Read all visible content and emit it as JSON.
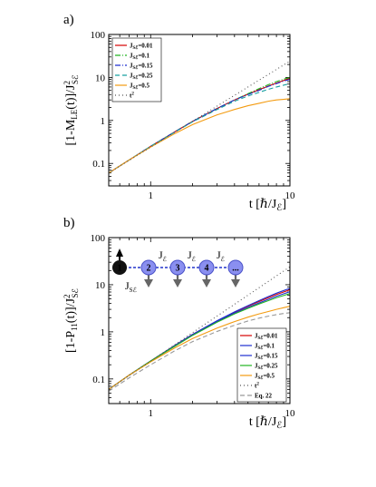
{
  "chart_data": [
    {
      "type": "line",
      "panel_label": "a)",
      "xlabel": "t [ℏ/J",
      "xlabel_sub": "ℰ",
      "xlabel_end": "]",
      "ylabel": "[1-M",
      "ylabel_sub": "LE",
      "ylabel_mid": "(t)]/J",
      "ylabel_sup": "2",
      "ylabel_sub2": "Sℰ",
      "xscale": "log",
      "yscale": "log",
      "xlim": [
        0.5,
        10
      ],
      "ylim": [
        0.03,
        100
      ],
      "xticks": [
        "1",
        "10"
      ],
      "yticks": [
        "0.1",
        "1",
        "10",
        "100"
      ],
      "legend_position": "top-left",
      "series": [
        {
          "name": "J",
          "sub": "Sℰ",
          "suffix": "=0.01",
          "color": "#d40000",
          "dash": "",
          "x": [
            0.5,
            0.7,
            1,
            1.5,
            2,
            3,
            4,
            5,
            6,
            7,
            8,
            9,
            10
          ],
          "y": [
            0.06,
            0.12,
            0.25,
            0.55,
            0.95,
            1.9,
            3.0,
            4.1,
            5.2,
            6.3,
            7.4,
            8.5,
            9.6
          ]
        },
        {
          "name": "J",
          "sub": "Sℰ",
          "suffix": "=0.1",
          "color": "#22b522",
          "dash": "6,2,1,2",
          "x": [
            0.5,
            0.7,
            1,
            1.5,
            2,
            3,
            4,
            5,
            6,
            7,
            8,
            9,
            10
          ],
          "y": [
            0.06,
            0.12,
            0.25,
            0.55,
            0.95,
            1.9,
            3.0,
            4.2,
            5.5,
            6.8,
            8.0,
            9.1,
            10.0
          ]
        },
        {
          "name": "J",
          "sub": "Sℰ",
          "suffix": "=0.15",
          "color": "#1f2fd0",
          "dash": "6,2,1,2",
          "x": [
            0.5,
            0.7,
            1,
            1.5,
            2,
            3,
            4,
            5,
            6,
            7,
            8,
            9,
            10
          ],
          "y": [
            0.06,
            0.12,
            0.25,
            0.55,
            0.95,
            1.9,
            3.0,
            4.0,
            5.0,
            6.2,
            7.2,
            8.2,
            9.0
          ]
        },
        {
          "name": "J",
          "sub": "Sℰ",
          "suffix": "=0.25",
          "color": "#18a0a0",
          "dash": "5,3",
          "x": [
            0.5,
            0.7,
            1,
            1.5,
            2,
            3,
            4,
            5,
            6,
            7,
            8,
            9,
            10
          ],
          "y": [
            0.06,
            0.12,
            0.25,
            0.54,
            0.93,
            1.8,
            2.8,
            3.7,
            4.5,
            5.3,
            6.0,
            6.6,
            7.2
          ]
        },
        {
          "name": "J",
          "sub": "Sℰ",
          "suffix": "=0.5",
          "color": "#f39b10",
          "dash": "",
          "x": [
            0.5,
            0.7,
            1,
            1.5,
            2,
            3,
            4,
            5,
            6,
            7,
            8,
            9,
            10
          ],
          "y": [
            0.06,
            0.12,
            0.24,
            0.5,
            0.8,
            1.35,
            1.8,
            2.2,
            2.5,
            2.8,
            3.0,
            3.1,
            3.2
          ]
        },
        {
          "name": "t",
          "sub": "",
          "sup": "2",
          "suffix": "",
          "color": "#555555",
          "dash": "1,3",
          "x": [
            0.5,
            1,
            2,
            4,
            10
          ],
          "y": [
            0.06,
            0.24,
            0.96,
            3.84,
            24
          ]
        }
      ]
    },
    {
      "type": "line",
      "panel_label": "b)",
      "xlabel": "t [ℏ/J",
      "xlabel_sub": "ℰ",
      "xlabel_end": "]",
      "ylabel": "[1-P",
      "ylabel_sub": "11",
      "ylabel_mid": "(t)]/J",
      "ylabel_sup": "2",
      "ylabel_sub2": "Sℰ",
      "xscale": "log",
      "yscale": "log",
      "xlim": [
        0.5,
        10
      ],
      "ylim": [
        0.03,
        100
      ],
      "xticks": [
        "1",
        "10"
      ],
      "yticks": [
        "0.1",
        "1",
        "10",
        "100"
      ],
      "legend_position": "bottom-right",
      "inset": {
        "spins": [
          "1",
          "2",
          "3",
          "4",
          "..."
        ],
        "coupling_S": "J",
        "coupling_S_sub": "Sℰ",
        "coupling_E": "J",
        "coupling_E_sub": "ℰ"
      },
      "series": [
        {
          "name": "J",
          "sub": "Sℰ",
          "suffix": "=0.01",
          "color": "#d40000",
          "dash": "",
          "x": [
            0.5,
            0.7,
            1,
            1.5,
            2,
            3,
            4,
            5,
            6,
            7,
            8,
            9,
            10
          ],
          "y": [
            0.06,
            0.12,
            0.24,
            0.52,
            0.88,
            1.7,
            2.6,
            3.5,
            4.4,
            5.3,
            6.2,
            7.0,
            7.8
          ]
        },
        {
          "name": "J",
          "sub": "Sℰ",
          "suffix": "=0.1",
          "color": "#1f2fd0",
          "dash": "",
          "x": [
            0.5,
            0.7,
            1,
            1.5,
            2,
            3,
            4,
            5,
            6,
            7,
            8,
            9,
            10
          ],
          "y": [
            0.06,
            0.12,
            0.24,
            0.52,
            0.88,
            1.72,
            2.65,
            3.6,
            4.6,
            5.6,
            6.6,
            7.5,
            8.4
          ]
        },
        {
          "name": "J",
          "sub": "Sℰ",
          "suffix": "=0.15",
          "color": "#1f2fd0",
          "dash": "",
          "x": [
            0.5,
            0.7,
            1,
            1.5,
            2,
            3,
            4,
            5,
            6,
            7,
            8,
            9,
            10
          ],
          "y": [
            0.06,
            0.12,
            0.24,
            0.5,
            0.85,
            1.65,
            2.5,
            3.3,
            4.1,
            4.9,
            5.7,
            6.4,
            7.1
          ]
        },
        {
          "name": "J",
          "sub": "Sℰ",
          "suffix": "=0.25",
          "color": "#22b522",
          "dash": "",
          "x": [
            0.5,
            0.7,
            1,
            1.5,
            2,
            3,
            4,
            5,
            6,
            7,
            8,
            9,
            10
          ],
          "y": [
            0.06,
            0.12,
            0.24,
            0.5,
            0.84,
            1.6,
            2.4,
            3.15,
            3.9,
            4.6,
            5.3,
            5.9,
            6.5
          ]
        },
        {
          "name": "J",
          "sub": "Sℰ",
          "suffix": "=0.5",
          "color": "#f39b10",
          "dash": "",
          "x": [
            0.5,
            0.7,
            1,
            1.5,
            2,
            3,
            4,
            5,
            6,
            7,
            8,
            9,
            10
          ],
          "y": [
            0.06,
            0.12,
            0.23,
            0.46,
            0.72,
            1.2,
            1.65,
            2.05,
            2.4,
            2.7,
            3.0,
            3.25,
            3.5
          ]
        },
        {
          "name": "t",
          "sub": "",
          "sup": "2",
          "suffix": "",
          "color": "#555555",
          "dash": "1,3",
          "x": [
            0.5,
            1,
            2,
            4,
            10
          ],
          "y": [
            0.06,
            0.24,
            0.96,
            3.84,
            24
          ]
        },
        {
          "name": "Eq. 22",
          "sub": "",
          "suffix": "",
          "color": "#999999",
          "dash": "5,3",
          "x": [
            0.5,
            0.7,
            1,
            1.5,
            2,
            3,
            4,
            5,
            6,
            7,
            8,
            9,
            10
          ],
          "y": [
            0.055,
            0.105,
            0.2,
            0.4,
            0.62,
            1.02,
            1.38,
            1.7,
            1.95,
            2.15,
            2.32,
            2.45,
            2.55
          ]
        }
      ]
    }
  ]
}
